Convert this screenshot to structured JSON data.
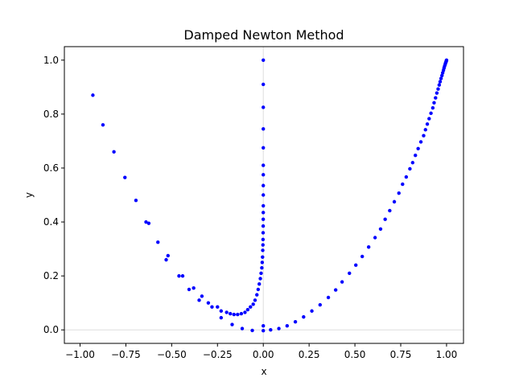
{
  "chart_data": {
    "type": "scatter",
    "title": "Damped Newton Method",
    "xlabel": "x",
    "ylabel": "y",
    "xlim": [
      -1.0,
      1.0
    ],
    "ylim": [
      -0.05,
      1.05
    ],
    "xticks": [
      -1.0,
      -0.75,
      -0.5,
      -0.25,
      0.0,
      0.25,
      0.5,
      0.75,
      1.0
    ],
    "xtick_labels": [
      "−1.00",
      "−0.75",
      "−0.50",
      "−0.25",
      "0.00",
      "0.25",
      "0.50",
      "0.75",
      "1.00"
    ],
    "yticks": [
      0.0,
      0.2,
      0.4,
      0.6,
      0.8,
      1.0
    ],
    "ytick_labels": [
      "0.0",
      "0.2",
      "0.4",
      "0.6",
      "0.8",
      "1.0"
    ],
    "reference_lines": {
      "x": 0,
      "y": 0,
      "color": "#dddddd"
    },
    "grid": false,
    "legend": "none",
    "series": [
      {
        "color": "#0000ff",
        "x": [
          -0.93,
          -0.875,
          -0.815,
          -0.755,
          -0.695,
          -0.64,
          -0.625,
          -0.575,
          -0.53,
          -0.52,
          -0.46,
          -0.44,
          -0.405,
          -0.38,
          -0.35,
          -0.335,
          -0.3,
          -0.28,
          -0.25,
          -0.23,
          -0.2,
          -0.18,
          -0.16,
          -0.14,
          -0.12,
          -0.1,
          -0.085,
          -0.07,
          -0.055,
          -0.045,
          -0.035,
          -0.028,
          -0.022,
          -0.016,
          -0.012,
          -0.008,
          -0.006,
          -0.004,
          -0.003,
          -0.002,
          -0.0015,
          -0.001,
          -0.0006,
          -0.0003,
          -0.0001,
          0.0,
          0.0,
          0.0,
          0.0,
          0.0,
          0.0,
          0.0,
          0.0,
          0.0,
          0.0,
          0.0,
          -0.23,
          -0.17,
          -0.115,
          -0.06,
          0.0,
          0.04,
          0.085,
          0.13,
          0.175,
          0.22,
          0.265,
          0.31,
          0.355,
          0.395,
          0.43,
          0.47,
          0.505,
          0.54,
          0.575,
          0.61,
          0.64,
          0.665,
          0.69,
          0.715,
          0.74,
          0.76,
          0.78,
          0.8,
          0.815,
          0.83,
          0.845,
          0.86,
          0.875,
          0.885,
          0.895,
          0.905,
          0.915,
          0.925,
          0.932,
          0.94,
          0.947,
          0.954,
          0.96,
          0.965,
          0.97,
          0.975,
          0.979,
          0.983,
          0.986,
          0.989,
          0.992,
          0.994,
          0.996,
          0.998,
          0.999,
          1.0
        ],
        "y": [
          0.87,
          0.76,
          0.66,
          0.565,
          0.48,
          0.4,
          0.395,
          0.325,
          0.26,
          0.275,
          0.2,
          0.2,
          0.15,
          0.155,
          0.11,
          0.125,
          0.1,
          0.085,
          0.085,
          0.07,
          0.065,
          0.06,
          0.057,
          0.057,
          0.06,
          0.065,
          0.075,
          0.085,
          0.095,
          0.11,
          0.13,
          0.15,
          0.17,
          0.19,
          0.21,
          0.23,
          0.25,
          0.27,
          0.295,
          0.315,
          0.335,
          0.36,
          0.385,
          0.41,
          0.435,
          0.46,
          0.5,
          0.535,
          0.575,
          0.61,
          0.675,
          0.745,
          0.825,
          0.91,
          1.0,
          0.015,
          0.045,
          0.02,
          0.005,
          -0.002,
          -0.003,
          0.0,
          0.005,
          0.015,
          0.03,
          0.048,
          0.07,
          0.093,
          0.12,
          0.148,
          0.178,
          0.21,
          0.24,
          0.272,
          0.307,
          0.342,
          0.374,
          0.41,
          0.442,
          0.475,
          0.507,
          0.54,
          0.567,
          0.597,
          0.62,
          0.647,
          0.672,
          0.697,
          0.72,
          0.742,
          0.763,
          0.783,
          0.803,
          0.823,
          0.842,
          0.86,
          0.878,
          0.893,
          0.908,
          0.92,
          0.932,
          0.943,
          0.953,
          0.962,
          0.97,
          0.977,
          0.983,
          0.988,
          0.992,
          0.995,
          0.998,
          1.0
        ]
      }
    ]
  }
}
